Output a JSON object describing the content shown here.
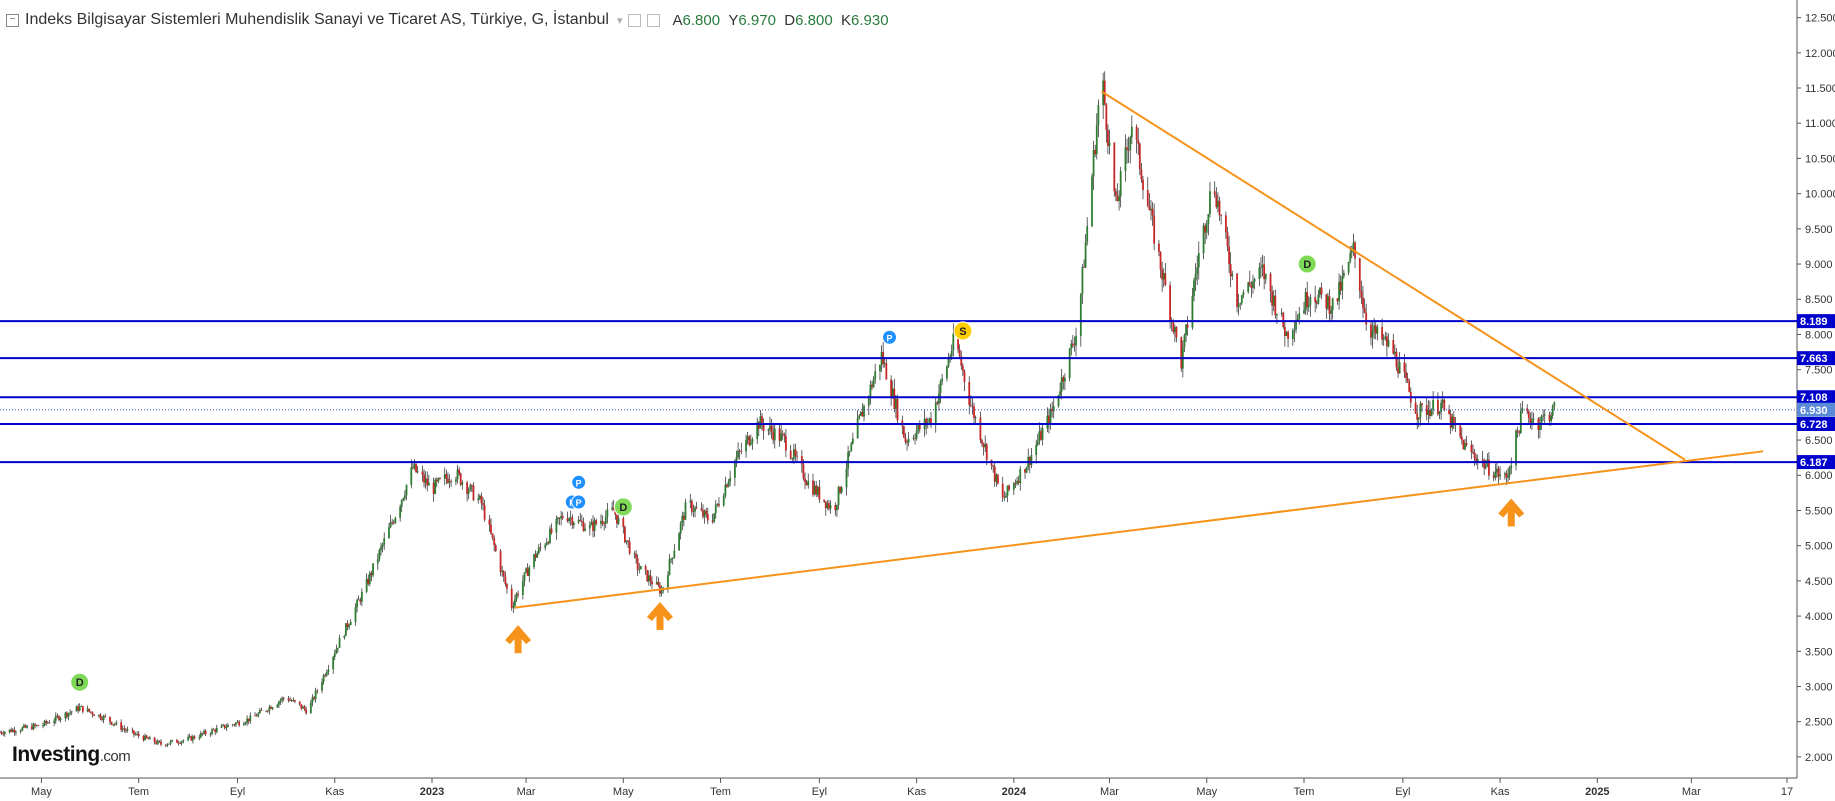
{
  "header": {
    "title": "Indeks Bilgisayar Sistemleri Muhendislik Sanayi ve Ticaret AS, Türkiye, G, İstanbul",
    "open_label": "A",
    "open": "6.800",
    "high_label": "Y",
    "high": "6.970",
    "low_label": "D",
    "low": "6.800",
    "close_label": "K",
    "close": "6.930"
  },
  "logo": {
    "brand": "Investing",
    "domain": ".com"
  },
  "colors": {
    "up": "#2e7d32",
    "down": "#c62828",
    "support": "#0000cc",
    "trend": "#f7931a",
    "grid": "#eeeeee",
    "axis": "#333333",
    "badge_p": "#1e90ff",
    "badge_d": "#7ed957",
    "badge_s": "#ffcc00"
  },
  "chart_data": {
    "type": "candlestick",
    "x_range": [
      "2022-04-05",
      "2025-05-05"
    ],
    "ylim": [
      1.7,
      12.75
    ],
    "y_ticks": [
      "2.000",
      "2.500",
      "3.000",
      "3.500",
      "4.000",
      "4.500",
      "5.000",
      "5.500",
      "6.000",
      "6.500",
      "7.000",
      "7.500",
      "8.000",
      "8.500",
      "9.000",
      "9.500",
      "10.000",
      "10.500",
      "11.000",
      "11.500",
      "12.000",
      "12.500"
    ],
    "x_ticks": [
      {
        "date": "2022-05-01",
        "label": "May"
      },
      {
        "date": "2022-07-01",
        "label": "Tem"
      },
      {
        "date": "2022-09-01",
        "label": "Eyl"
      },
      {
        "date": "2022-11-01",
        "label": "Kas"
      },
      {
        "date": "2023-01-01",
        "label": "2023"
      },
      {
        "date": "2023-03-01",
        "label": "Mar"
      },
      {
        "date": "2023-05-01",
        "label": "May"
      },
      {
        "date": "2023-07-01",
        "label": "Tem"
      },
      {
        "date": "2023-09-01",
        "label": "Eyl"
      },
      {
        "date": "2023-11-01",
        "label": "Kas"
      },
      {
        "date": "2024-01-01",
        "label": "2024"
      },
      {
        "date": "2024-03-01",
        "label": "Mar"
      },
      {
        "date": "2024-05-01",
        "label": "May"
      },
      {
        "date": "2024-07-01",
        "label": "Tem"
      },
      {
        "date": "2024-09-01",
        "label": "Eyl"
      },
      {
        "date": "2024-11-01",
        "label": "Kas"
      },
      {
        "date": "2025-01-01",
        "label": "2025"
      },
      {
        "date": "2025-03-01",
        "label": "Mar"
      },
      {
        "date": "2025-04-30",
        "label": "17"
      }
    ],
    "price_path": [
      [
        "2022-04-05",
        2.35
      ],
      [
        "2022-05-01",
        2.45
      ],
      [
        "2022-05-25",
        2.7
      ],
      [
        "2022-06-10",
        2.55
      ],
      [
        "2022-06-25",
        2.35
      ],
      [
        "2022-07-15",
        2.18
      ],
      [
        "2022-08-01",
        2.25
      ],
      [
        "2022-08-20",
        2.4
      ],
      [
        "2022-09-10",
        2.55
      ],
      [
        "2022-10-01",
        2.85
      ],
      [
        "2022-10-15",
        2.65
      ],
      [
        "2022-11-01",
        3.5
      ],
      [
        "2022-11-20",
        4.4
      ],
      [
        "2022-12-10",
        5.5
      ],
      [
        "2022-12-20",
        6.1
      ],
      [
        "2023-01-01",
        5.8
      ],
      [
        "2023-01-15",
        6.05
      ],
      [
        "2023-02-01",
        5.6
      ],
      [
        "2023-02-20",
        4.15
      ],
      [
        "2023-03-05",
        4.8
      ],
      [
        "2023-03-25",
        5.45
      ],
      [
        "2023-04-10",
        5.25
      ],
      [
        "2023-04-25",
        5.5
      ],
      [
        "2023-05-10",
        4.7
      ],
      [
        "2023-05-25",
        4.35
      ],
      [
        "2023-06-10",
        5.6
      ],
      [
        "2023-06-25",
        5.35
      ],
      [
        "2023-07-10",
        6.2
      ],
      [
        "2023-07-25",
        6.75
      ],
      [
        "2023-08-10",
        6.5
      ],
      [
        "2023-08-25",
        5.9
      ],
      [
        "2023-09-10",
        5.5
      ],
      [
        "2023-09-25",
        6.7
      ],
      [
        "2023-10-10",
        7.7
      ],
      [
        "2023-10-25",
        6.5
      ],
      [
        "2023-11-10",
        6.8
      ],
      [
        "2023-11-25",
        7.95
      ],
      [
        "2023-12-05",
        7.0
      ],
      [
        "2023-12-25",
        5.65
      ],
      [
        "2024-01-10",
        6.2
      ],
      [
        "2024-01-25",
        6.9
      ],
      [
        "2024-02-10",
        8.1
      ],
      [
        "2024-02-25",
        11.7
      ],
      [
        "2024-03-05",
        9.8
      ],
      [
        "2024-03-15",
        11.0
      ],
      [
        "2024-03-30",
        9.3
      ],
      [
        "2024-04-15",
        7.6
      ],
      [
        "2024-04-25",
        9.0
      ],
      [
        "2024-05-05",
        10.2
      ],
      [
        "2024-05-20",
        8.5
      ],
      [
        "2024-06-05",
        8.9
      ],
      [
        "2024-06-20",
        8.0
      ],
      [
        "2024-07-05",
        8.6
      ],
      [
        "2024-07-20",
        8.4
      ],
      [
        "2024-08-01",
        9.2
      ],
      [
        "2024-08-10",
        8.1
      ],
      [
        "2024-08-25",
        7.8
      ],
      [
        "2024-09-10",
        6.9
      ],
      [
        "2024-09-25",
        7.0
      ],
      [
        "2024-10-10",
        6.4
      ],
      [
        "2024-10-25",
        6.1
      ],
      [
        "2024-11-05",
        5.95
      ],
      [
        "2024-11-15",
        6.9
      ],
      [
        "2024-11-25",
        6.75
      ],
      [
        "2024-12-05",
        6.93
      ]
    ],
    "horizontal_levels": [
      {
        "value": 8.189,
        "label": "8.189"
      },
      {
        "value": 7.663,
        "label": "7.663"
      },
      {
        "value": 7.108,
        "label": "7.108"
      },
      {
        "value": 6.728,
        "label": "6.728"
      },
      {
        "value": 6.187,
        "label": "6.187"
      }
    ],
    "last_price": {
      "value": 6.93,
      "label": "6.930"
    },
    "trendlines": [
      {
        "name": "support",
        "from": [
          "2023-02-22",
          4.12
        ],
        "to": [
          "2025-04-15",
          6.34
        ]
      },
      {
        "name": "resistance",
        "from": [
          "2024-02-25",
          11.45
        ],
        "to": [
          "2025-02-25",
          6.22
        ]
      }
    ],
    "markers": [
      {
        "type": "D",
        "date": "2022-05-25",
        "value": 3.06
      },
      {
        "type": "P",
        "date": "2023-03-30",
        "value": 5.62
      },
      {
        "type": "P",
        "date": "2023-04-03",
        "value": 5.9
      },
      {
        "type": "P",
        "date": "2023-04-03",
        "value": 5.62
      },
      {
        "type": "D",
        "date": "2023-05-01",
        "value": 5.55
      },
      {
        "type": "P",
        "date": "2023-10-15",
        "value": 7.96
      },
      {
        "type": "S",
        "date": "2023-11-30",
        "value": 8.05
      },
      {
        "type": "D",
        "date": "2024-07-03",
        "value": 9.0
      }
    ],
    "arrows": [
      {
        "date": "2023-02-24",
        "value": 3.7
      },
      {
        "date": "2023-05-24",
        "value": 4.03
      },
      {
        "date": "2024-11-08",
        "value": 5.5
      }
    ]
  }
}
